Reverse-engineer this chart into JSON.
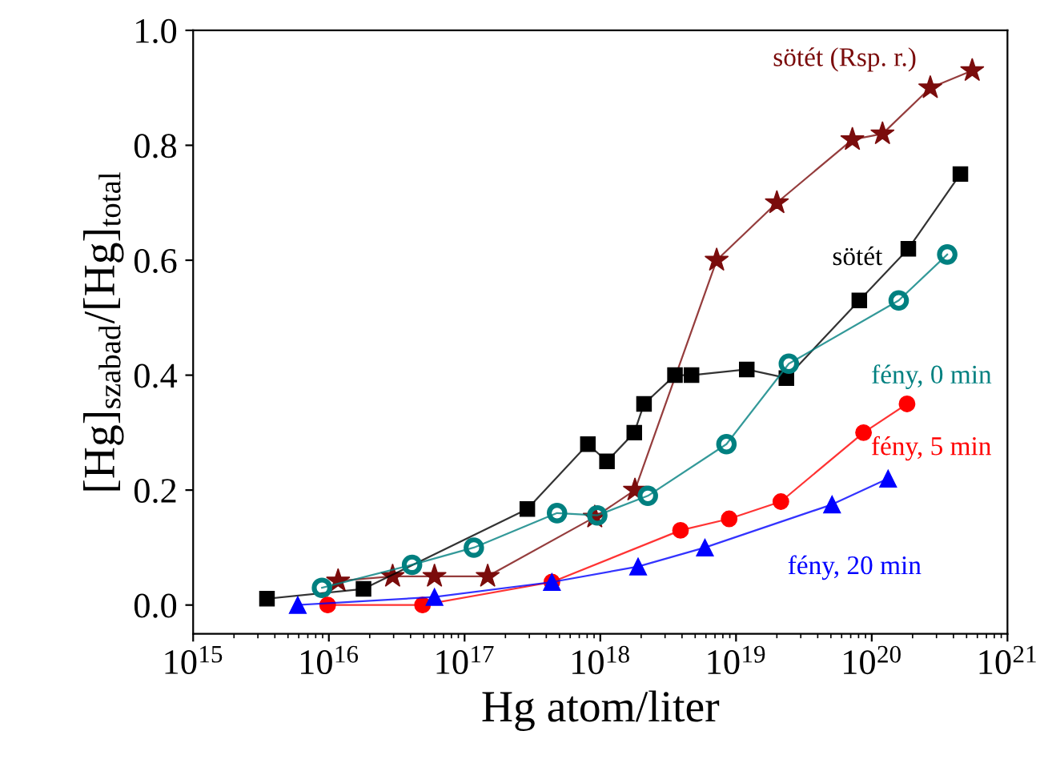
{
  "chart_data": {
    "type": "line",
    "xlabel": "Hg atom/liter",
    "ylabel": "[Hg]$_{szabad}$/[Hg]$_{total}$",
    "log": "x",
    "xlim": [
      1000000000000000.0,
      1e+21
    ],
    "ylim": [
      -0.05,
      1.0
    ],
    "xticks": [
      {
        "value": 1000000000000000.0,
        "label": "10$^{15}$"
      },
      {
        "value": 1e+16,
        "label": "10$^{16}$"
      },
      {
        "value": 1e+17,
        "label": "10$^{17}$"
      },
      {
        "value": 1e+18,
        "label": "10$^{18}$"
      },
      {
        "value": 1e+19,
        "label": "10$^{19}$"
      },
      {
        "value": 1e+20,
        "label": "10$^{20}$"
      },
      {
        "value": 1e+21,
        "label": "10$^{21}$"
      }
    ],
    "yticks": [
      {
        "value": 0,
        "label": "0.0"
      },
      {
        "value": 0.2,
        "label": "0.2"
      },
      {
        "value": 0.4,
        "label": "0.4"
      },
      {
        "value": 0.6,
        "label": "0.6"
      },
      {
        "value": 0.8,
        "label": "0.8"
      },
      {
        "value": 1.0,
        "label": "1.0"
      }
    ],
    "grid": false,
    "legend": false,
    "series": [
      {
        "name": "sötét (Rsp. r.)",
        "color": "#7b0c0c",
        "marker": "star",
        "x": [
          1.17e+16,
          2.95e+16,
          6e+16,
          1.48e+17,
          9.1e+17,
          1.8e+18,
          7.2e+18,
          2e+19,
          7.2e+19,
          1.2e+20,
          2.7e+20,
          5.5e+20
        ],
        "values": [
          0.042,
          0.05,
          0.05,
          0.05,
          0.153,
          0.2,
          0.6,
          0.7,
          0.81,
          0.82,
          0.9,
          0.93
        ]
      },
      {
        "name": "sötét",
        "color": "#000000",
        "marker": "square",
        "x": [
          3500000000000000.0,
          1.8e+16,
          2.9e+17,
          8.1e+17,
          1.12e+18,
          1.78e+18,
          2.1e+18,
          3.55e+18,
          4.7e+18,
          1.2e+19,
          2.35e+19,
          8.1e+19,
          1.86e+20,
          4.5e+20
        ],
        "values": [
          0.011,
          0.028,
          0.167,
          0.28,
          0.25,
          0.3,
          0.35,
          0.4,
          0.4,
          0.41,
          0.395,
          0.53,
          0.62,
          0.75
        ]
      },
      {
        "name": "fény, 0 min",
        "color": "#008080",
        "marker": "circle_open",
        "x": [
          8900000000000000.0,
          4.1e+16,
          1.17e+17,
          4.8e+17,
          9.5e+17,
          2.24e+18,
          8.5e+18,
          2.45e+19,
          1.58e+20,
          3.6e+20
        ],
        "values": [
          0.03,
          0.07,
          0.1,
          0.16,
          0.156,
          0.19,
          0.28,
          0.42,
          0.53,
          0.61
        ]
      },
      {
        "name": "fény, 5 min",
        "color": "#ff0000",
        "marker": "circle",
        "x": [
          9800000000000000.0,
          4.9e+16,
          4.4e+17,
          3.9e+18,
          8.9e+18,
          2.14e+19,
          8.7e+19,
          1.82e+20
        ],
        "values": [
          0.0,
          0.0,
          0.04,
          0.13,
          0.15,
          0.18,
          0.3,
          0.35
        ]
      },
      {
        "name": "fény, 20 min",
        "color": "#0000ff",
        "marker": "triangle",
        "x": [
          5900000000000000.0,
          6e+16,
          4.4e+17,
          1.9e+18,
          5.9e+18,
          5.1e+19,
          1.32e+20
        ],
        "values": [
          0.0,
          0.014,
          0.04,
          0.067,
          0.1,
          0.175,
          0.22
        ]
      }
    ]
  }
}
